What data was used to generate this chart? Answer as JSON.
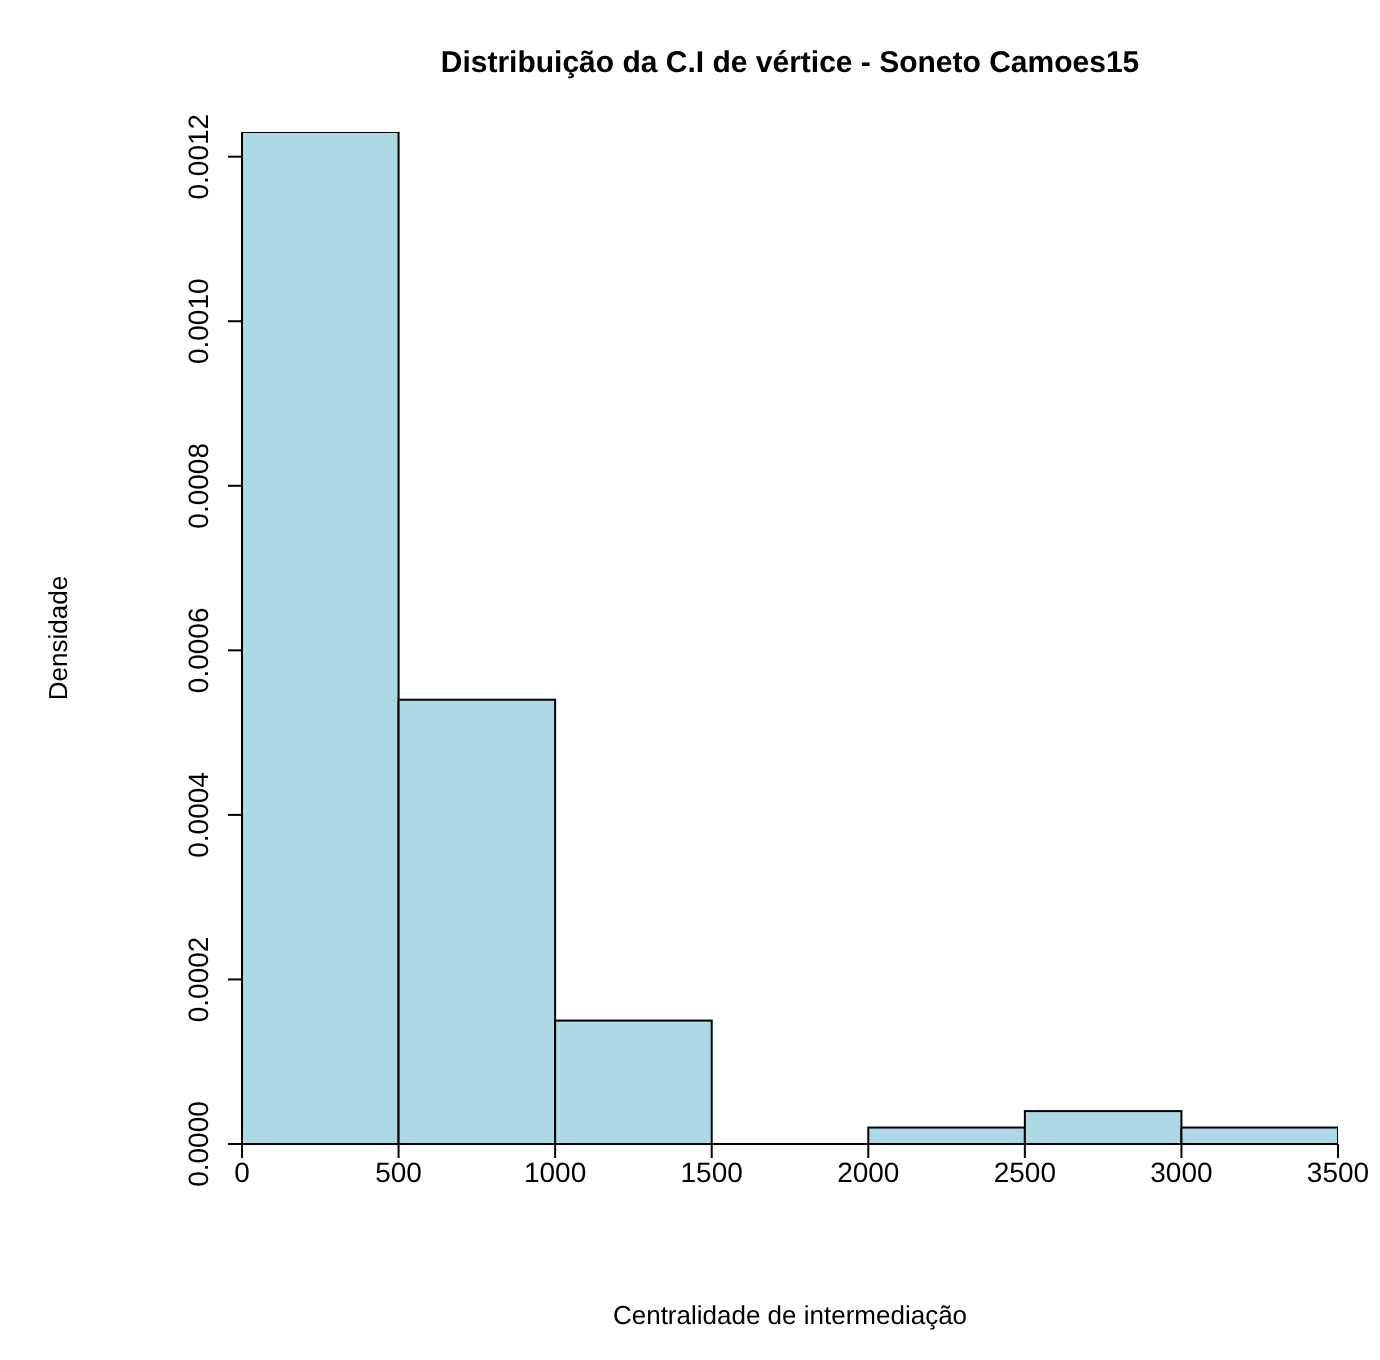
{
  "chart_data": {
    "type": "histogram",
    "title": "Distribuição da C.I de vértice - Soneto Camoes15",
    "xlabel": "Centralidade de intermediação",
    "ylabel": "Densidade",
    "bins": [
      0,
      500,
      1000,
      1500,
      2000,
      2500,
      3000,
      3500
    ],
    "values": [
      0.00123,
      0.00054,
      0.00015,
      0,
      2e-05,
      4e-05,
      2e-05
    ],
    "color": "#add8e6",
    "xlim": [
      0,
      3500
    ],
    "xticks": [
      0,
      500,
      1000,
      1500,
      2000,
      2500,
      3000,
      3500
    ],
    "ylim": [
      0,
      0.00123
    ],
    "yticks": [
      {
        "value": 0,
        "label": "0.0000"
      },
      {
        "value": 0.0002,
        "label": "0.0002"
      },
      {
        "value": 0.0004,
        "label": "0.0004"
      },
      {
        "value": 0.0006,
        "label": "0.0006"
      },
      {
        "value": 0.0008,
        "label": "0.0008"
      },
      {
        "value": 0.001,
        "label": "0.0010"
      },
      {
        "value": 0.0012,
        "label": "0.0012"
      }
    ]
  }
}
